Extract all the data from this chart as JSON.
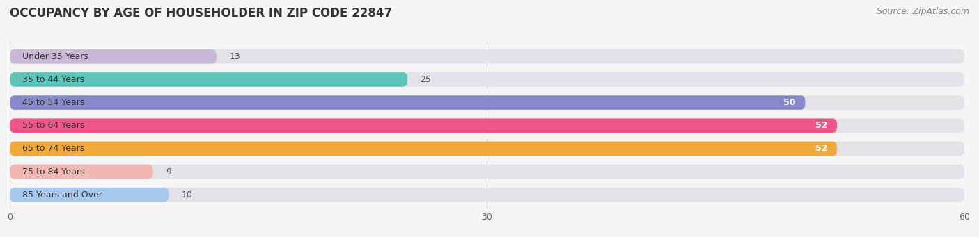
{
  "title": "OCCUPANCY BY AGE OF HOUSEHOLDER IN ZIP CODE 22847",
  "source": "Source: ZipAtlas.com",
  "categories": [
    "Under 35 Years",
    "35 to 44 Years",
    "45 to 54 Years",
    "55 to 64 Years",
    "65 to 74 Years",
    "75 to 84 Years",
    "85 Years and Over"
  ],
  "values": [
    13,
    25,
    50,
    52,
    52,
    9,
    10
  ],
  "colors": [
    "#c9b8d8",
    "#5ec4ba",
    "#8888cc",
    "#ee5588",
    "#f0a83a",
    "#f0b8b0",
    "#a8c8f0"
  ],
  "xlim_max": 60,
  "xticks": [
    0,
    30,
    60
  ],
  "background_color": "#f5f5f5",
  "title_fontsize": 12,
  "source_fontsize": 9,
  "label_fontsize": 9,
  "value_fontsize": 9
}
